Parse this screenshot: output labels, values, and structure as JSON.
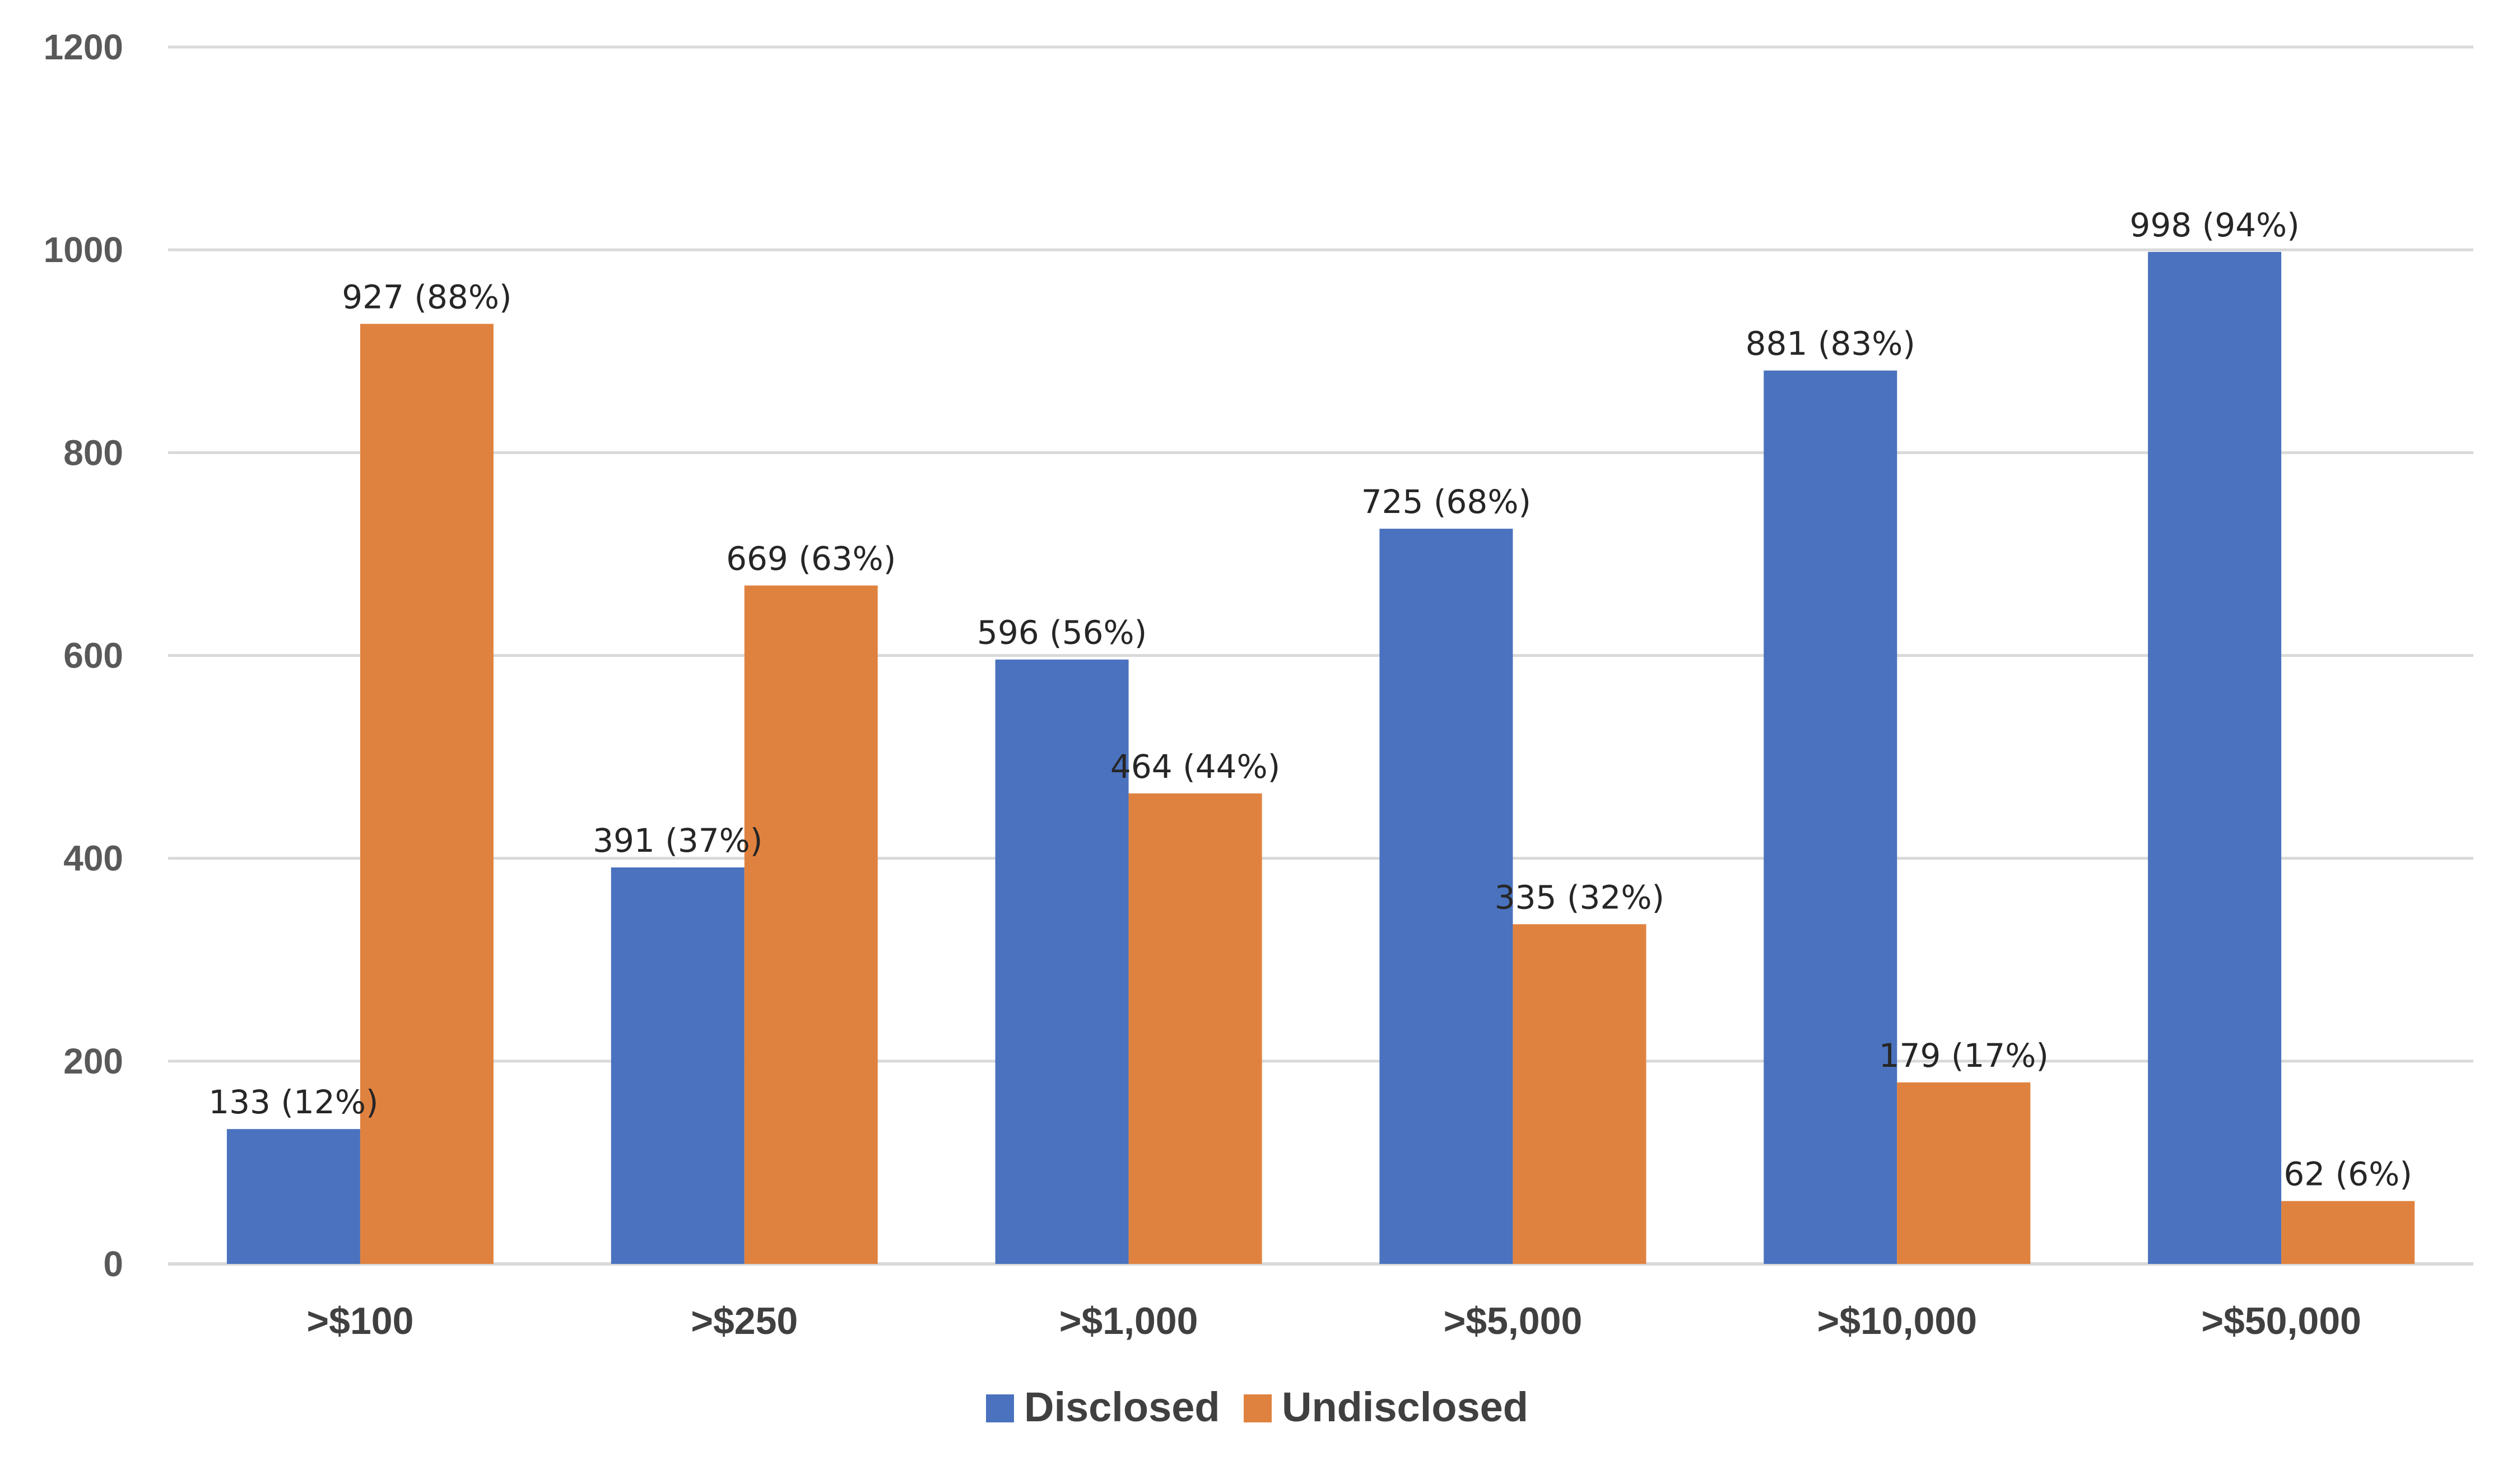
{
  "chart_data": {
    "type": "bar",
    "categories": [
      ">$100",
      ">$250",
      ">$1,000",
      ">$5,000",
      ">$10,000",
      ">$50,000"
    ],
    "series": [
      {
        "name": "Disclosed",
        "color": "#4a72be",
        "values": [
          133,
          391,
          596,
          725,
          881,
          998
        ],
        "labels": [
          "133 (12%)",
          "391 (37%)",
          "596 (56%)",
          "725 (68%)",
          "881 (83%)",
          "998 (94%)"
        ]
      },
      {
        "name": "Undisclosed",
        "color": "#e0823f",
        "values": [
          927,
          669,
          464,
          335,
          179,
          62
        ],
        "labels": [
          "927 (88%)",
          "669 (63%)",
          "464  (44%)",
          "335 (32%)",
          "179 (17%)",
          "62 (6%)"
        ]
      }
    ],
    "y_ticks": [
      "0",
      "200",
      "400",
      "600",
      "800",
      "1000",
      "1200"
    ],
    "ylim": [
      0,
      1200
    ],
    "grid": true,
    "legend_position": "bottom",
    "title": "",
    "xlabel": "",
    "ylabel": ""
  }
}
